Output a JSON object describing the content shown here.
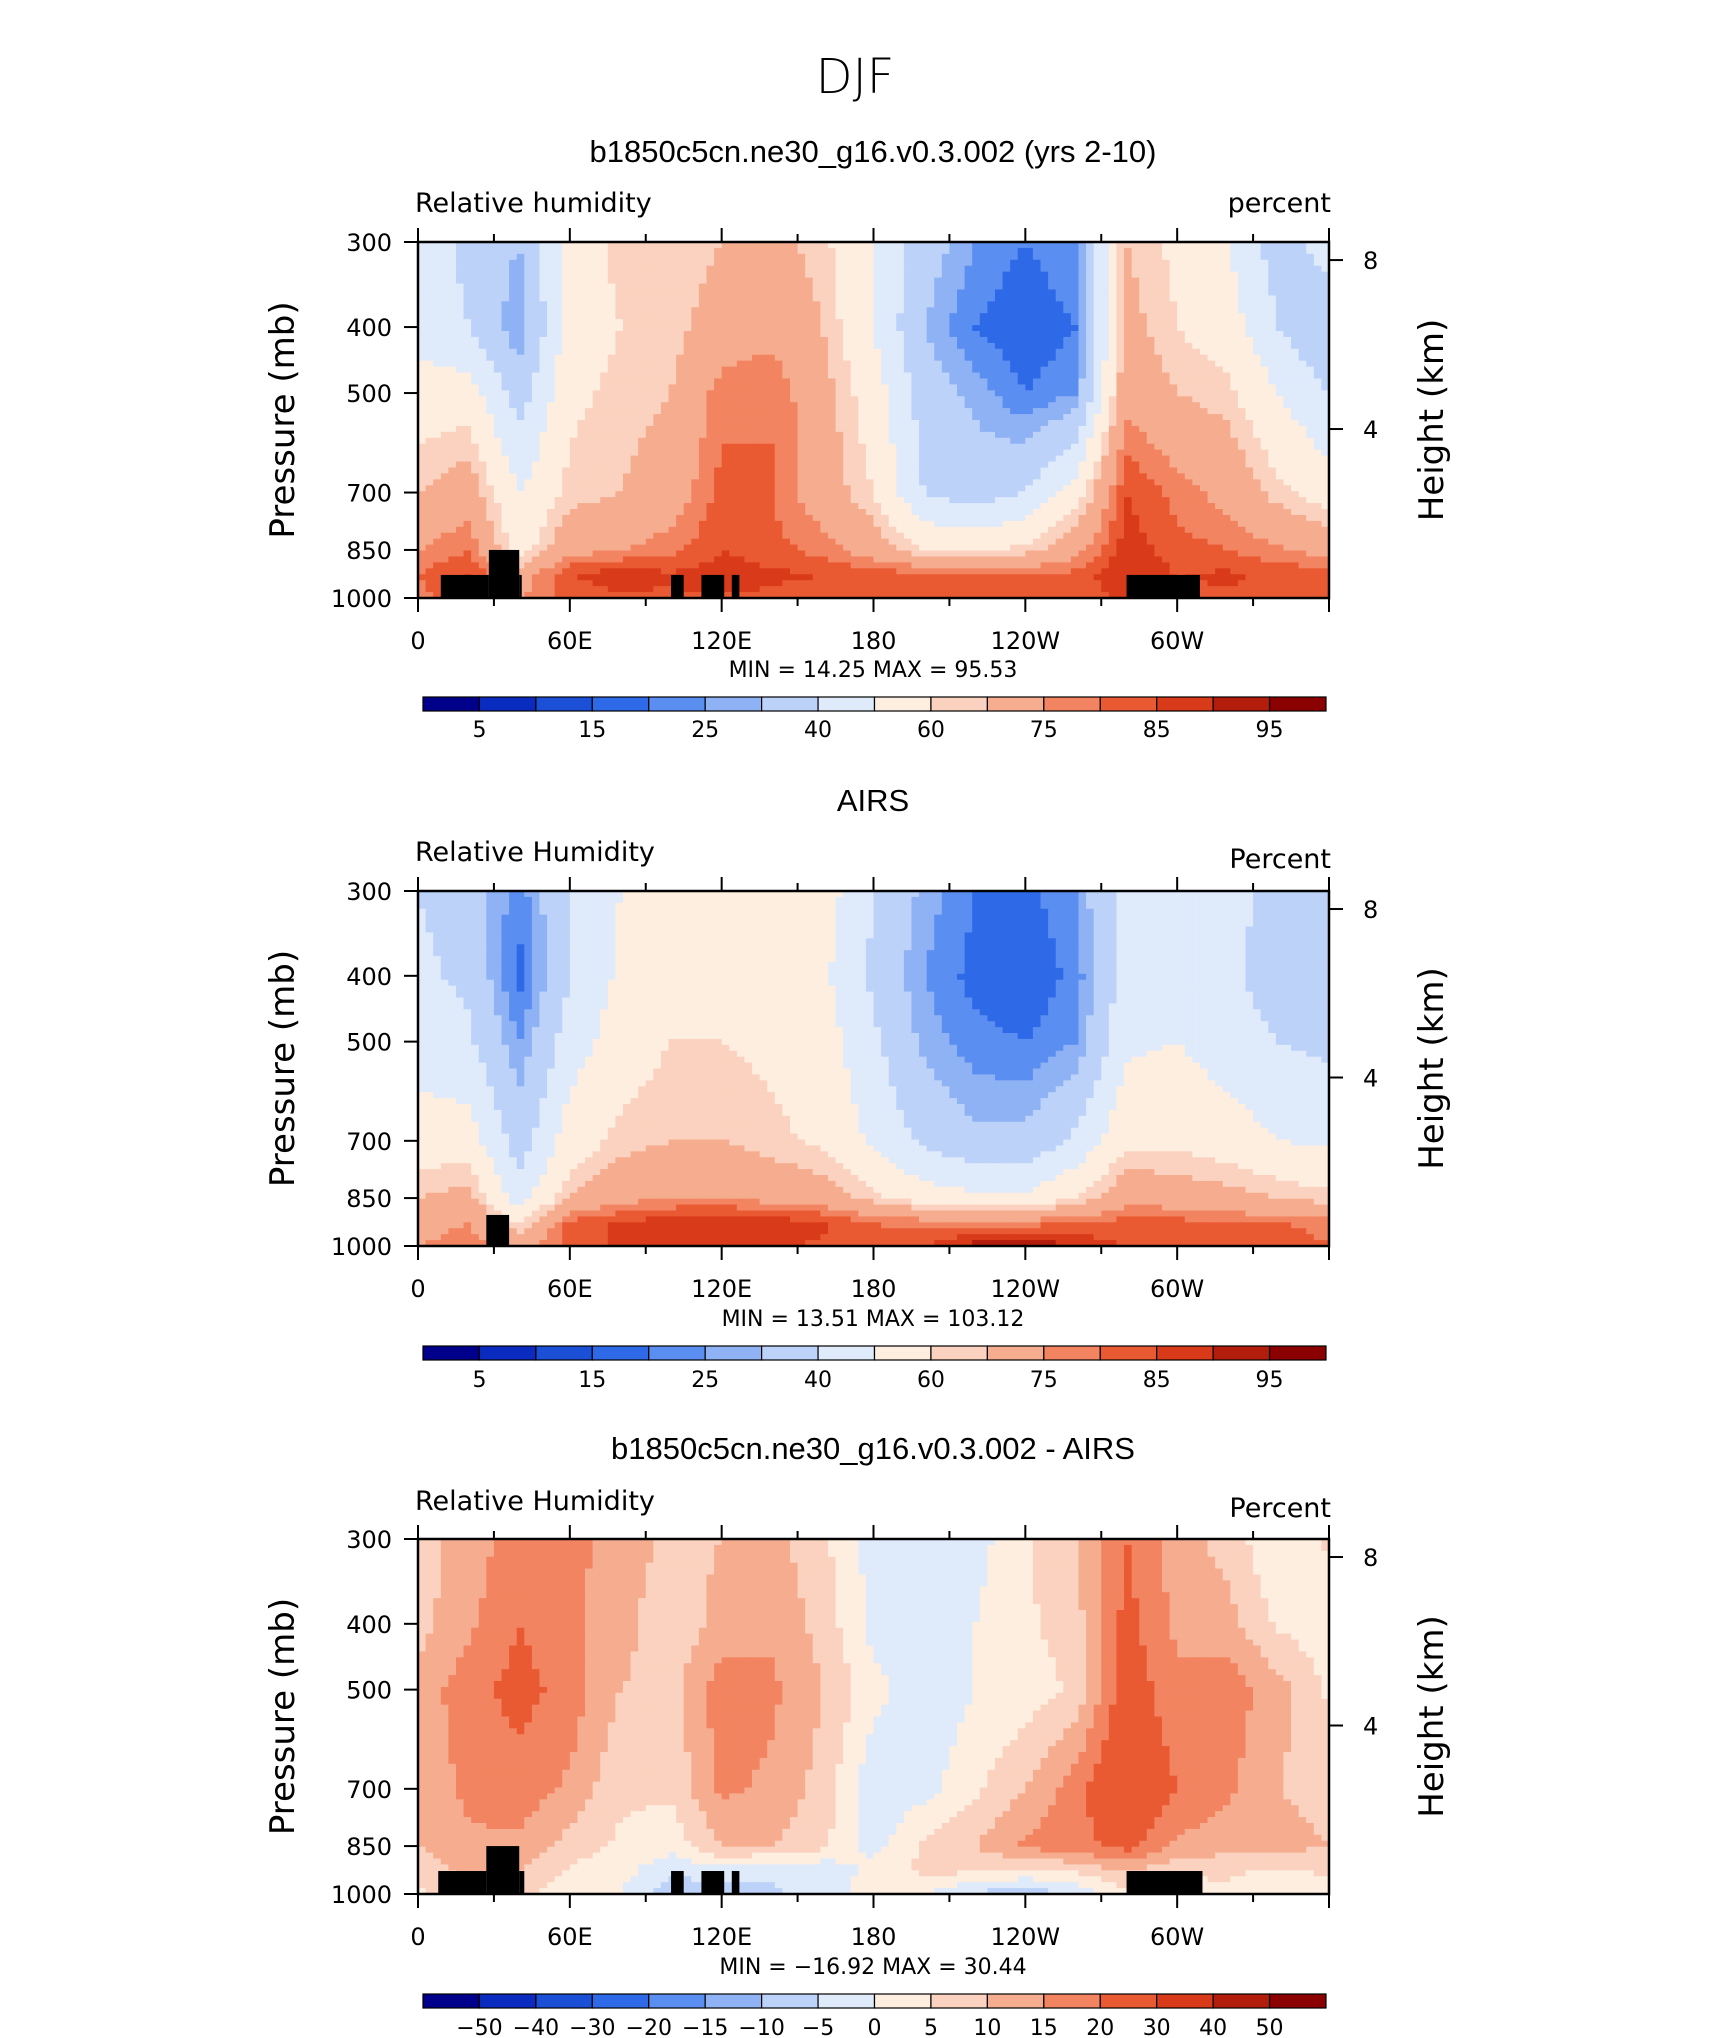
{
  "figure_title": "DJF",
  "colors": {
    "scale_rh": [
      "#00008b",
      "#0a2bbf",
      "#1a4fd6",
      "#2e6ae8",
      "#5a8ef0",
      "#8fb2f5",
      "#bcd2f8",
      "#dfeafb",
      "#fdeee0",
      "#fbd2bf",
      "#f6ad8f",
      "#f28461",
      "#ea5a32",
      "#d83a1a",
      "#b31d0c",
      "#8b0000"
    ],
    "scale_diff": [
      "#00008b",
      "#0a2bbf",
      "#1a4fd6",
      "#2e6ae8",
      "#5a8ef0",
      "#8fb2f5",
      "#bcd2f8",
      "#dfeafb",
      "#fdeee0",
      "#fbd2bf",
      "#f6ad8f",
      "#f28461",
      "#ea5a32",
      "#d83a1a",
      "#b31d0c",
      "#8b0000"
    ],
    "terrain": "#000000"
  },
  "chart_data": [
    {
      "type": "heatmap",
      "title": "b1850c5cn.ne30_g16.v0.3.002 (yrs 2-10)",
      "left_label": "Relative  humidity",
      "right_label": "percent",
      "ylabel": "Pressure  (mb)",
      "ylabel_right": "Height  (km)",
      "x_ticks": [
        "0",
        "60E",
        "120E",
        "180",
        "120W",
        "60W"
      ],
      "y_ticks": [
        "300",
        "400",
        "500",
        "700",
        "850",
        "1000"
      ],
      "y_values": [
        300,
        400,
        500,
        700,
        850,
        1000
      ],
      "right_ticks": [
        "8",
        "4"
      ],
      "right_values_km": [
        8,
        4
      ],
      "xlim": [
        0,
        360
      ],
      "ylim": [
        1000,
        300
      ],
      "y_scale": "log",
      "stats": {
        "min_label": "MIN =",
        "min": "14.25",
        "max_label": "MAX =",
        "max": "95.53"
      },
      "colorbar_labels": [
        "5",
        "15",
        "25",
        "40",
        "60",
        "75",
        "85",
        "95"
      ],
      "levels": [
        5,
        10,
        15,
        20,
        25,
        30,
        40,
        50,
        60,
        65,
        75,
        80,
        85,
        90,
        95
      ],
      "terrain": [
        {
          "lon0": 9,
          "lon1": 28,
          "p_top": 925
        },
        {
          "lon0": 28,
          "lon1": 40,
          "p_top": 850
        },
        {
          "lon0": 40,
          "lon1": 41,
          "p_top": 925
        },
        {
          "lon0": 100,
          "lon1": 105,
          "p_top": 925
        },
        {
          "lon0": 112,
          "lon1": 121,
          "p_top": 925
        },
        {
          "lon0": 124,
          "lon1": 127,
          "p_top": 925
        },
        {
          "lon0": 280,
          "lon1": 309,
          "p_top": 925
        }
      ],
      "grid_lon": [
        0,
        20,
        40,
        60,
        80,
        100,
        120,
        140,
        160,
        180,
        200,
        220,
        240,
        260,
        280,
        300,
        320,
        340,
        360
      ],
      "grid_p": [
        300,
        400,
        500,
        700,
        850,
        925,
        1000
      ],
      "grid_values": [
        [
          45,
          38,
          30,
          55,
          62,
          60,
          65,
          68,
          62,
          50,
          35,
          25,
          20,
          25,
          65,
          58,
          50,
          35,
          45
        ],
        [
          45,
          40,
          25,
          55,
          60,
          62,
          70,
          72,
          65,
          50,
          30,
          20,
          15,
          20,
          68,
          60,
          55,
          40,
          30
        ],
        [
          55,
          55,
          35,
          58,
          62,
          65,
          78,
          80,
          68,
          55,
          35,
          28,
          20,
          25,
          72,
          65,
          62,
          50,
          40
        ],
        [
          65,
          70,
          50,
          62,
          65,
          70,
          82,
          80,
          70,
          60,
          40,
          35,
          40,
          55,
          85,
          78,
          72,
          62,
          55
        ],
        [
          75,
          80,
          55,
          72,
          75,
          78,
          85,
          82,
          78,
          70,
          60,
          58,
          62,
          72,
          88,
          82,
          80,
          76,
          72
        ],
        [
          80,
          86,
          70,
          85,
          88,
          86,
          88,
          86,
          85,
          83,
          82,
          80,
          80,
          82,
          90,
          85,
          86,
          84,
          82
        ],
        [
          78,
          84,
          74,
          82,
          84,
          84,
          84,
          84,
          82,
          82,
          80,
          80,
          80,
          82,
          86,
          84,
          84,
          82,
          80
        ]
      ]
    },
    {
      "type": "heatmap",
      "title": "AIRS",
      "left_label": "Relative  Humidity",
      "right_label": "Percent",
      "ylabel": "Pressure  (mb)",
      "ylabel_right": "Height  (km)",
      "x_ticks": [
        "0",
        "60E",
        "120E",
        "180",
        "120W",
        "60W"
      ],
      "y_ticks": [
        "300",
        "400",
        "500",
        "700",
        "850",
        "1000"
      ],
      "y_values": [
        300,
        400,
        500,
        700,
        850,
        1000
      ],
      "right_ticks": [
        "8",
        "4"
      ],
      "right_values_km": [
        8,
        4
      ],
      "xlim": [
        0,
        360
      ],
      "ylim": [
        1000,
        300
      ],
      "y_scale": "log",
      "stats": {
        "min_label": "MIN =",
        "min": "13.51",
        "max_label": "MAX =",
        "max": "103.12"
      },
      "colorbar_labels": [
        "5",
        "15",
        "25",
        "40",
        "60",
        "75",
        "85",
        "95"
      ],
      "levels": [
        5,
        10,
        15,
        20,
        25,
        30,
        40,
        50,
        60,
        65,
        75,
        80,
        85,
        90,
        95
      ],
      "terrain": [
        {
          "lon0": 27,
          "lon1": 36,
          "p_top": 900
        }
      ],
      "grid_lon": [
        0,
        20,
        40,
        60,
        80,
        100,
        120,
        140,
        160,
        180,
        200,
        220,
        240,
        260,
        280,
        300,
        320,
        340,
        360
      ],
      "grid_values": [
        [
          40,
          35,
          22,
          40,
          50,
          55,
          60,
          58,
          55,
          40,
          28,
          20,
          18,
          25,
          45,
          50,
          45,
          35,
          40
        ],
        [
          42,
          38,
          18,
          40,
          52,
          58,
          58,
          55,
          52,
          38,
          25,
          18,
          15,
          22,
          45,
          48,
          42,
          35,
          30
        ],
        [
          45,
          42,
          25,
          45,
          55,
          60,
          60,
          58,
          55,
          42,
          28,
          22,
          20,
          25,
          48,
          50,
          45,
          40,
          38
        ],
        [
          55,
          55,
          35,
          55,
          62,
          65,
          65,
          62,
          58,
          48,
          38,
          32,
          32,
          42,
          58,
          58,
          55,
          50,
          48
        ],
        [
          65,
          68,
          45,
          65,
          72,
          75,
          75,
          72,
          70,
          62,
          55,
          52,
          52,
          60,
          72,
          70,
          68,
          65,
          62
        ],
        [
          72,
          75,
          60,
          82,
          86,
          88,
          90,
          88,
          86,
          80,
          78,
          78,
          78,
          80,
          82,
          82,
          80,
          80,
          78
        ],
        [
          75,
          78,
          70,
          82,
          86,
          88,
          88,
          86,
          84,
          82,
          85,
          92,
          94,
          90,
          84,
          82,
          82,
          84,
          80
        ]
      ],
      "grid_p": [
        300,
        400,
        500,
        700,
        850,
        925,
        1000
      ]
    },
    {
      "type": "heatmap",
      "title": "b1850c5cn.ne30_g16.v0.3.002 - AIRS",
      "left_label": "Relative  Humidity",
      "right_label": "Percent",
      "ylabel": "Pressure  (mb)",
      "ylabel_right": "Height  (km)",
      "x_ticks": [
        "0",
        "60E",
        "120E",
        "180",
        "120W",
        "60W"
      ],
      "y_ticks": [
        "300",
        "400",
        "500",
        "700",
        "850",
        "1000"
      ],
      "y_values": [
        300,
        400,
        500,
        700,
        850,
        1000
      ],
      "right_ticks": [
        "8",
        "4"
      ],
      "right_values_km": [
        8,
        4
      ],
      "xlim": [
        0,
        360
      ],
      "ylim": [
        1000,
        300
      ],
      "y_scale": "log",
      "stats": {
        "min_label": "MIN =",
        "min": "−16.92",
        "max_label": "MAX =",
        "max": "30.44"
      },
      "colorbar_labels": [
        "−50",
        "−40",
        "−30",
        "−20",
        "−15",
        "−10",
        "−5",
        "0",
        "5",
        "10",
        "15",
        "20",
        "30",
        "40",
        "50"
      ],
      "levels": [
        -50,
        -40,
        -30,
        -20,
        -15,
        -10,
        -5,
        0,
        5,
        10,
        15,
        20,
        30,
        40,
        50
      ],
      "terrain": [
        {
          "lon0": 8,
          "lon1": 27,
          "p_top": 925
        },
        {
          "lon0": 27,
          "lon1": 40,
          "p_top": 850
        },
        {
          "lon0": 40,
          "lon1": 42,
          "p_top": 925
        },
        {
          "lon0": 100,
          "lon1": 105,
          "p_top": 925
        },
        {
          "lon0": 112,
          "lon1": 121,
          "p_top": 925
        },
        {
          "lon0": 124,
          "lon1": 127,
          "p_top": 925
        },
        {
          "lon0": 280,
          "lon1": 310,
          "p_top": 925
        }
      ],
      "grid_lon": [
        0,
        20,
        40,
        60,
        80,
        100,
        120,
        140,
        160,
        180,
        200,
        220,
        240,
        260,
        280,
        300,
        320,
        340,
        360
      ],
      "grid_p": [
        300,
        400,
        500,
        700,
        850,
        925,
        1000
      ],
      "grid_values": [
        [
          8,
          12,
          18,
          16,
          14,
          8,
          10,
          12,
          6,
          -2,
          -4,
          -2,
          4,
          10,
          20,
          12,
          8,
          0,
          6
        ],
        [
          8,
          14,
          20,
          16,
          12,
          6,
          12,
          14,
          8,
          -2,
          -4,
          0,
          4,
          8,
          22,
          14,
          12,
          4,
          2
        ],
        [
          12,
          18,
          22,
          18,
          10,
          8,
          18,
          16,
          10,
          2,
          -4,
          0,
          2,
          6,
          24,
          16,
          18,
          12,
          4
        ],
        [
          12,
          16,
          18,
          14,
          6,
          6,
          16,
          14,
          8,
          -4,
          -2,
          4,
          10,
          18,
          28,
          20,
          16,
          10,
          8
        ],
        [
          10,
          14,
          14,
          8,
          4,
          2,
          10,
          10,
          6,
          -2,
          6,
          10,
          16,
          18,
          22,
          14,
          12,
          12,
          10
        ],
        [
          6,
          12,
          10,
          4,
          2,
          -4,
          -2,
          -4,
          -4,
          2,
          6,
          6,
          4,
          6,
          10,
          6,
          6,
          4,
          6
        ],
        [
          4,
          8,
          6,
          2,
          0,
          -8,
          -8,
          -6,
          -2,
          2,
          0,
          -6,
          -8,
          -4,
          4,
          2,
          4,
          0,
          2
        ]
      ]
    }
  ]
}
